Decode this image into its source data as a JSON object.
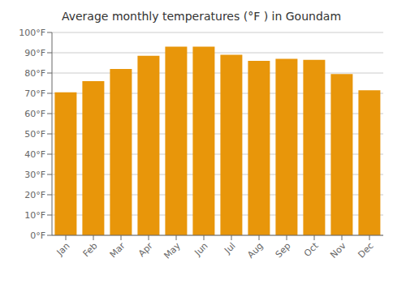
{
  "chart_data": {
    "type": "bar",
    "title": "Average monthly temperatures (°F ) in Goundam",
    "categories": [
      "Jan",
      "Feb",
      "Mar",
      "Apr",
      "May",
      "Jun",
      "Jul",
      "Aug",
      "Sep",
      "Oct",
      "Nov",
      "Dec"
    ],
    "values": [
      70.5,
      76.0,
      82.0,
      88.5,
      93.0,
      93.0,
      89.0,
      86.0,
      87.0,
      86.5,
      79.5,
      71.5
    ],
    "color": "#E8960A",
    "ylim": [
      0,
      100
    ],
    "yticks": [
      {
        "value": 0,
        "label": "0°F"
      },
      {
        "value": 10,
        "label": "10°F"
      },
      {
        "value": 20,
        "label": "20°F"
      },
      {
        "value": 30,
        "label": "30°F"
      },
      {
        "value": 40,
        "label": "40°F"
      },
      {
        "value": 50,
        "label": "50°F"
      },
      {
        "value": 60,
        "label": "60°F"
      },
      {
        "value": 70,
        "label": "70°F"
      },
      {
        "value": 80,
        "label": "80°F"
      },
      {
        "value": 90,
        "label": "90°F"
      },
      {
        "value": 100,
        "label": "100°F"
      }
    ],
    "grid": true
  }
}
